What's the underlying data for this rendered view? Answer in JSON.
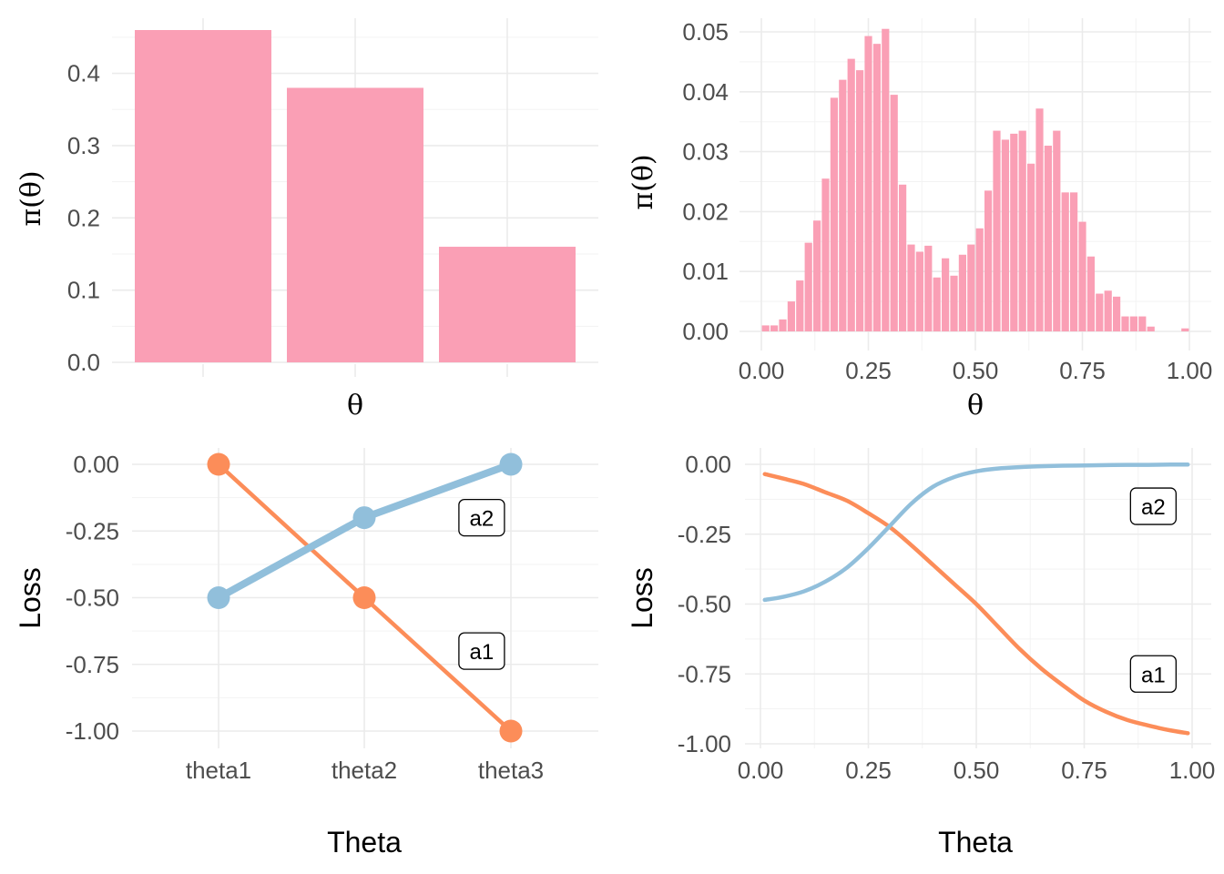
{
  "colors": {
    "bar": "#fa9fb5",
    "a1": "#fc8d59",
    "a2": "#91bfdb"
  },
  "chart_data": [
    {
      "type": "bar",
      "categories": [
        "",
        "",
        ""
      ],
      "values": [
        0.46,
        0.38,
        0.16
      ],
      "title": "",
      "xlabel": "θ",
      "ylabel": "π(θ)",
      "ylim": [
        0,
        0.46
      ],
      "yticks": [
        0.0,
        0.1,
        0.2,
        0.3,
        0.4
      ],
      "ytick_labels": [
        "0.0",
        "0.1",
        "0.2",
        "0.3",
        "0.4"
      ],
      "grid": true
    },
    {
      "type": "bar",
      "title": "",
      "xlabel": "θ",
      "ylabel": "π(θ)",
      "xlim": [
        0,
        1
      ],
      "ylim": [
        0,
        0.05
      ],
      "xticks": [
        0,
        0.25,
        0.5,
        0.75,
        1.0
      ],
      "xtick_labels": [
        "0.00",
        "0.25",
        "0.50",
        "0.75",
        "1.00"
      ],
      "yticks": [
        0,
        0.01,
        0.02,
        0.03,
        0.04,
        0.05
      ],
      "ytick_labels": [
        "0.00",
        "0.01",
        "0.02",
        "0.03",
        "0.04",
        "0.05"
      ],
      "bin_width": 0.02,
      "x": [
        0.01,
        0.03,
        0.05,
        0.07,
        0.09,
        0.11,
        0.13,
        0.15,
        0.17,
        0.19,
        0.21,
        0.23,
        0.25,
        0.27,
        0.29,
        0.31,
        0.33,
        0.35,
        0.37,
        0.39,
        0.41,
        0.43,
        0.45,
        0.47,
        0.49,
        0.51,
        0.53,
        0.55,
        0.57,
        0.59,
        0.61,
        0.63,
        0.65,
        0.67,
        0.69,
        0.71,
        0.73,
        0.75,
        0.77,
        0.79,
        0.81,
        0.83,
        0.85,
        0.87,
        0.89,
        0.91,
        0.93,
        0.95,
        0.97,
        0.99
      ],
      "values": [
        0.001,
        0.001,
        0.002,
        0.005,
        0.0085,
        0.0148,
        0.0185,
        0.0255,
        0.039,
        0.042,
        0.0455,
        0.0436,
        0.0493,
        0.048,
        0.0505,
        0.0395,
        0.0245,
        0.0145,
        0.0133,
        0.0143,
        0.009,
        0.0122,
        0.0093,
        0.0128,
        0.0145,
        0.0172,
        0.0235,
        0.0335,
        0.032,
        0.033,
        0.0335,
        0.028,
        0.0372,
        0.031,
        0.0335,
        0.0232,
        0.0232,
        0.0183,
        0.0125,
        0.0063,
        0.0068,
        0.0058,
        0.0025,
        0.0025,
        0.0025,
        0.0008,
        0,
        0,
        0,
        0.0005
      ],
      "grid": true
    },
    {
      "type": "line",
      "title": "",
      "xlabel": "Theta",
      "ylabel": "Loss",
      "categories": [
        "theta1",
        "theta2",
        "theta3"
      ],
      "ylim": [
        -1.0,
        0.0
      ],
      "yticks": [
        0,
        -0.25,
        -0.5,
        -0.75,
        -1.0
      ],
      "ytick_labels": [
        "0.00",
        "-0.25",
        "-0.50",
        "-0.75",
        "-1.00"
      ],
      "series": [
        {
          "name": "a1",
          "values": [
            0.0,
            -0.5,
            -1.0
          ]
        },
        {
          "name": "a2",
          "values": [
            -0.5,
            -0.2,
            0.0
          ]
        }
      ],
      "labels": [
        {
          "text": "a2",
          "x": 2.8,
          "y": -0.2
        },
        {
          "text": "a1",
          "x": 2.8,
          "y": -0.7
        }
      ],
      "grid": true
    },
    {
      "type": "line",
      "title": "",
      "xlabel": "Theta",
      "ylabel": "Loss",
      "xlim": [
        0,
        1
      ],
      "ylim": [
        -1.0,
        0.0
      ],
      "xticks": [
        0,
        0.25,
        0.5,
        0.75,
        1.0
      ],
      "xtick_labels": [
        "0.00",
        "0.25",
        "0.50",
        "0.75",
        "1.00"
      ],
      "yticks": [
        0,
        -0.25,
        -0.5,
        -0.75,
        -1.0
      ],
      "ytick_labels": [
        "0.00",
        "-0.25",
        "-0.50",
        "-0.75",
        "-1.00"
      ],
      "series": [
        {
          "name": "a1",
          "x": [
            0.01,
            0.05,
            0.1,
            0.15,
            0.2,
            0.25,
            0.3,
            0.35,
            0.4,
            0.45,
            0.5,
            0.55,
            0.6,
            0.65,
            0.7,
            0.75,
            0.8,
            0.85,
            0.9,
            0.95,
            0.99
          ],
          "values": [
            -0.035,
            -0.05,
            -0.07,
            -0.1,
            -0.13,
            -0.175,
            -0.225,
            -0.29,
            -0.36,
            -0.43,
            -0.5,
            -0.58,
            -0.66,
            -0.73,
            -0.79,
            -0.845,
            -0.885,
            -0.915,
            -0.935,
            -0.952,
            -0.962
          ]
        },
        {
          "name": "a2",
          "x": [
            0.01,
            0.05,
            0.1,
            0.15,
            0.2,
            0.25,
            0.3,
            0.35,
            0.4,
            0.45,
            0.5,
            0.55,
            0.6,
            0.65,
            0.7,
            0.75,
            0.8,
            0.85,
            0.9,
            0.95,
            0.99
          ],
          "values": [
            -0.485,
            -0.475,
            -0.455,
            -0.42,
            -0.37,
            -0.3,
            -0.22,
            -0.14,
            -0.08,
            -0.045,
            -0.025,
            -0.015,
            -0.01,
            -0.007,
            -0.005,
            -0.004,
            -0.003,
            -0.002,
            -0.002,
            -0.001,
            -0.001
          ]
        }
      ],
      "labels": [
        {
          "text": "a2",
          "x": 0.91,
          "y": -0.15
        },
        {
          "text": "a1",
          "x": 0.91,
          "y": -0.75
        }
      ],
      "grid": true
    }
  ]
}
